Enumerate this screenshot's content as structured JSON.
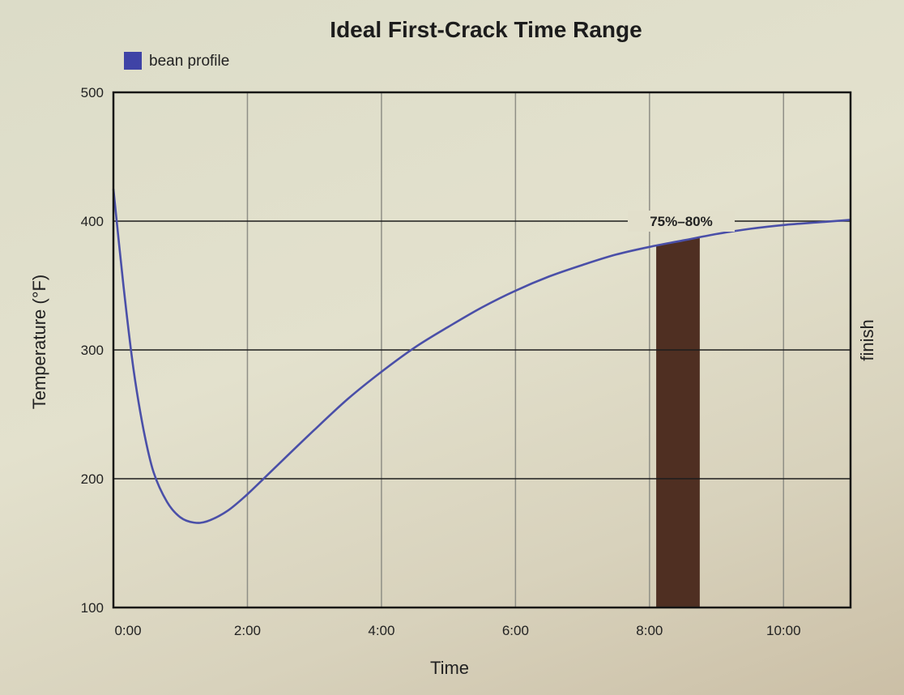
{
  "chart_data": {
    "type": "line",
    "title": "Ideal First-Crack Time Range",
    "xlabel": "Time",
    "ylabel": "Temperature (°F)",
    "right_label": "finish",
    "x_ticks": [
      "0:00",
      "2:00",
      "4:00",
      "6:00",
      "8:00",
      "10:00"
    ],
    "y_ticks": [
      100,
      200,
      300,
      400,
      500
    ],
    "xlim": [
      0,
      11
    ],
    "ylim": [
      100,
      500
    ],
    "grid": true,
    "legend": {
      "placement": "top-left",
      "entries": [
        {
          "name": "bean profile",
          "color": "#3f43a6"
        }
      ]
    },
    "series": [
      {
        "name": "bean profile",
        "color": "#4a4fa8",
        "x": [
          0,
          0.15,
          0.3,
          0.45,
          0.6,
          0.8,
          1.0,
          1.2,
          1.4,
          1.7,
          2.0,
          2.4,
          3.0,
          3.5,
          4.0,
          4.5,
          5.0,
          5.5,
          6.0,
          6.5,
          7.0,
          7.5,
          8.0,
          8.5,
          9.0,
          9.5,
          10.0,
          10.5,
          11.0
        ],
        "y": [
          425,
          350,
          285,
          238,
          205,
          182,
          170,
          166,
          167,
          175,
          188,
          208,
          238,
          262,
          283,
          302,
          318,
          333,
          346,
          357,
          366,
          374,
          380,
          385,
          390,
          394,
          397,
          399,
          401
        ]
      }
    ],
    "highlight": {
      "label": "75%–80%",
      "x_start": 8.1,
      "x_end": 8.75,
      "color": "#4f2f22"
    },
    "colors": {
      "curve": "#4a4fa8",
      "grid": "#8f8f86",
      "axis": "#151515",
      "band": "#4f2f22"
    }
  }
}
